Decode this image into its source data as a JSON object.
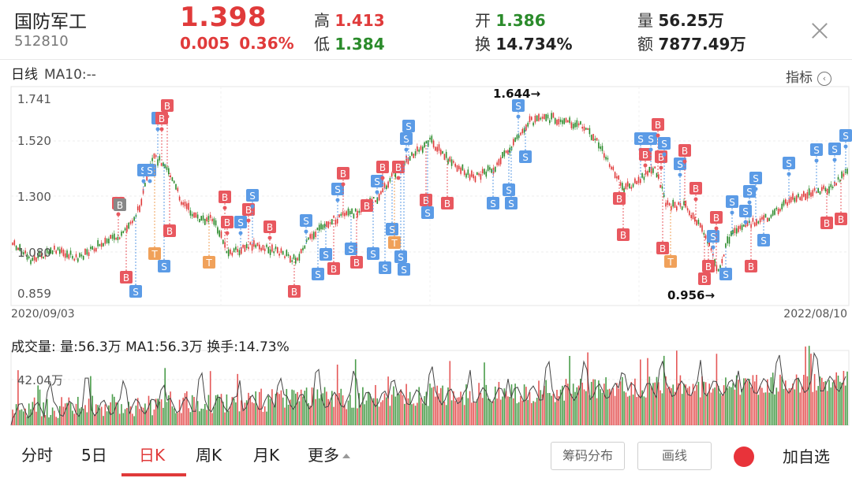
{
  "header": {
    "name": "国防军工",
    "code": "512810",
    "price": "1.398",
    "change": "0.005",
    "change_pct": "0.36%",
    "high_label": "高",
    "high_value": "1.413",
    "low_label": "低",
    "low_value": "1.384",
    "open_label": "开",
    "open_value": "1.386",
    "turnover_label": "换",
    "turnover_value": "14.734%",
    "volume_label": "量",
    "volume_value": "56.25万",
    "amount_label": "额",
    "amount_value": "7877.49万",
    "close_icon": "close-icon"
  },
  "kline": {
    "title": "日线",
    "ma": "MA10:--",
    "indicator_label": "指标",
    "indicator_icon": "chevron-left-circle-icon",
    "y_ticks": [
      "1.741",
      "1.520",
      "1.300",
      "1.080",
      "0.859"
    ],
    "start_date": "2020/09/03",
    "end_date": "2022/08/10",
    "max_label": "1.644→",
    "min_label": "0.956→"
  },
  "volume": {
    "title": "成交量:",
    "detail": "量:56.3万 MA1:56.3万 换手:14.73%",
    "y_tick": "42.04万"
  },
  "tabs": [
    {
      "label": "分时"
    },
    {
      "label": "5日"
    },
    {
      "label": "日K"
    },
    {
      "label": "周K"
    },
    {
      "label": "月K"
    },
    {
      "label": "更多"
    }
  ],
  "buttons": {
    "chip": "筹码分布",
    "draw": "画线",
    "add": "加自选"
  },
  "colors": {
    "up": "#e03a3a",
    "down": "#2b8b2b",
    "buy_marker": "#e8585f",
    "sell_marker": "#5b9be6",
    "t_marker": "#f0a15a"
  }
}
